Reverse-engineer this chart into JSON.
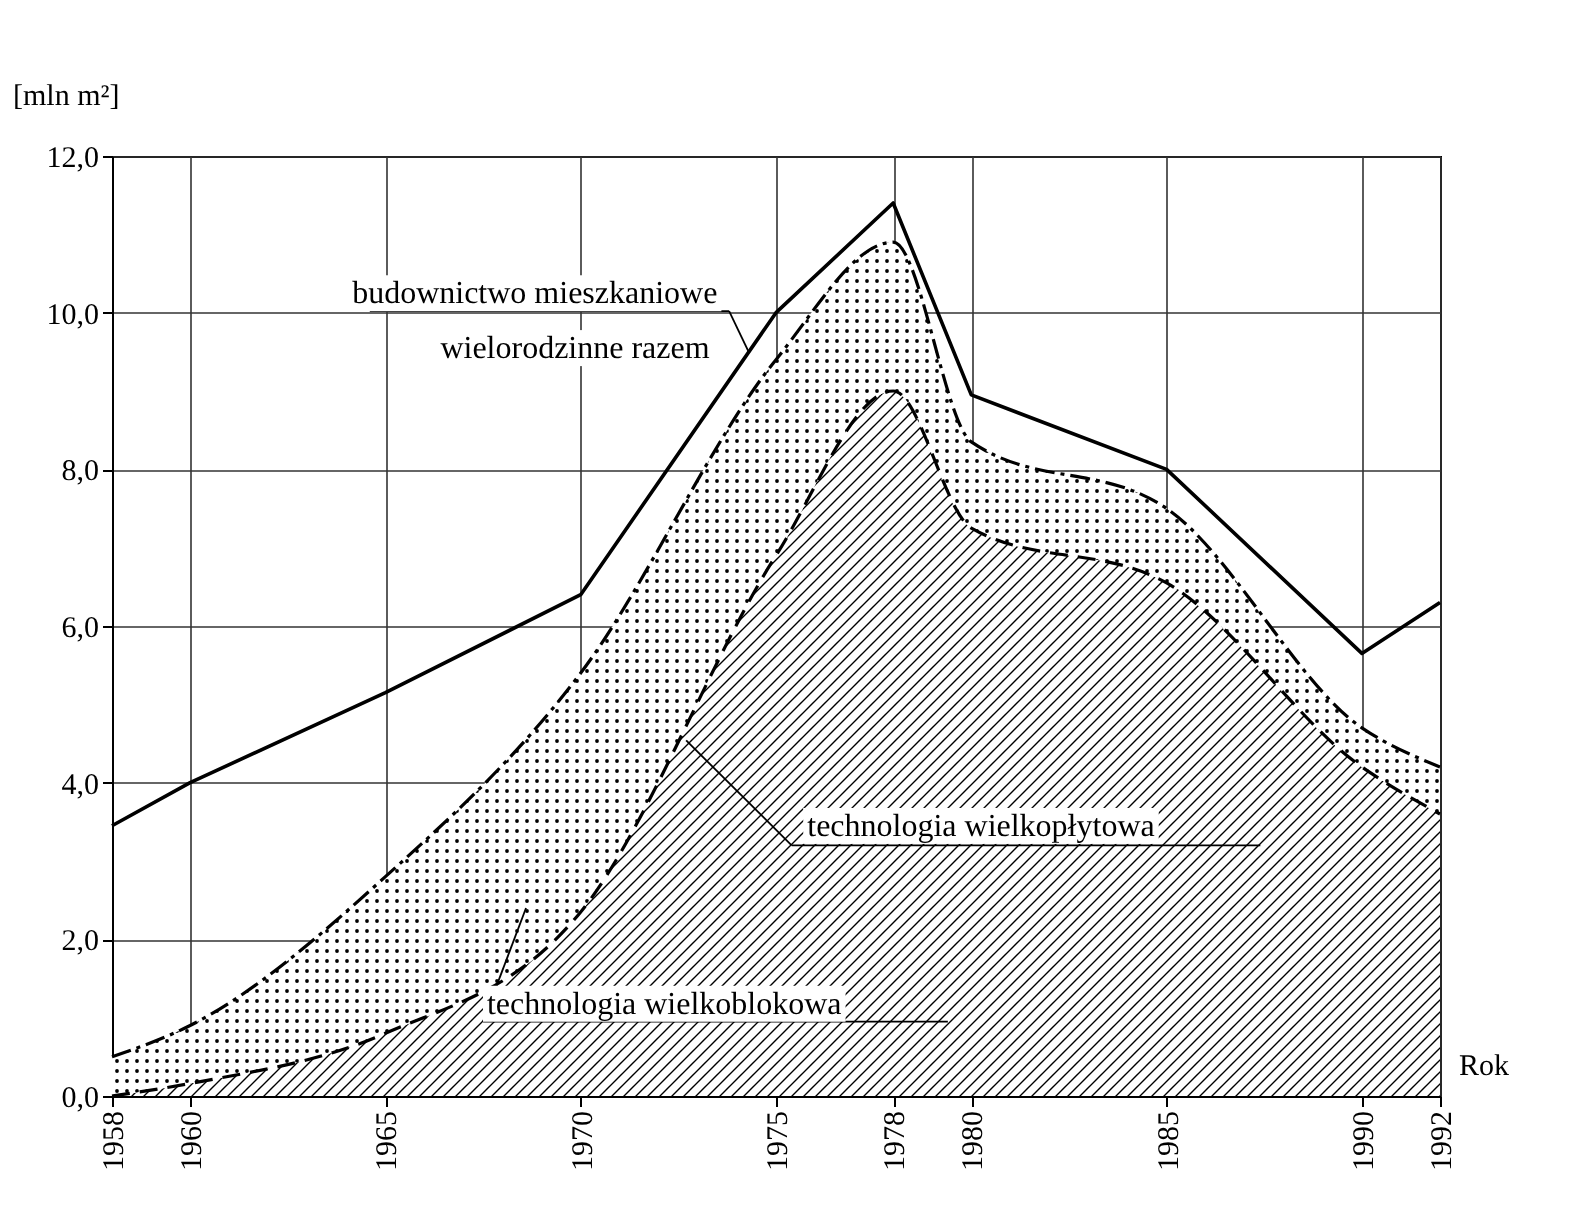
{
  "chart_data": {
    "type": "area",
    "stacked": true,
    "ylabel": "[mln m²]",
    "xlabel": "Rok",
    "x": [
      1958,
      1960,
      1965,
      1970,
      1975,
      1978,
      1980,
      1985,
      1990,
      1992
    ],
    "xlim": [
      1958,
      1992
    ],
    "xticks": [
      1958,
      1960,
      1965,
      1970,
      1975,
      1978,
      1980,
      1985,
      1990,
      1992
    ],
    "ylim": [
      0,
      12
    ],
    "yticks": [
      {
        "value": 0,
        "label": "0,0"
      },
      {
        "value": 2,
        "label": "2,0"
      },
      {
        "value": 4,
        "label": "4,0"
      },
      {
        "value": 6,
        "label": "6,0"
      },
      {
        "value": 8,
        "label": "8,0"
      },
      {
        "value": 10,
        "label": "10,0"
      },
      {
        "value": 12,
        "label": "12,0"
      }
    ],
    "grid": true,
    "series": [
      {
        "name": "technologia wielkopłytowa",
        "color": "#000000",
        "line_style": "dashed",
        "values": [
          0,
          0.16,
          0.8,
          2.35,
          6.9,
          9.0,
          7.25,
          6.55,
          4.2,
          3.6
        ]
      },
      {
        "name": "technologia wielkoblokowa",
        "color": "#000000",
        "line_style": "dashed",
        "values": [
          0.5,
          0.74,
          2.0,
          3.05,
          2.5,
          1.9,
          1.1,
          0.95,
          0.5,
          0.6
        ]
      },
      {
        "name": "budownictwo mieszkaniowe wielorodzinne razem",
        "type": "line",
        "color": "#000000",
        "line_style": "solid",
        "values": [
          3.45,
          4.0,
          5.15,
          6.4,
          10.0,
          11.4,
          8.95,
          8.0,
          5.65,
          6.3
        ]
      }
    ]
  }
}
